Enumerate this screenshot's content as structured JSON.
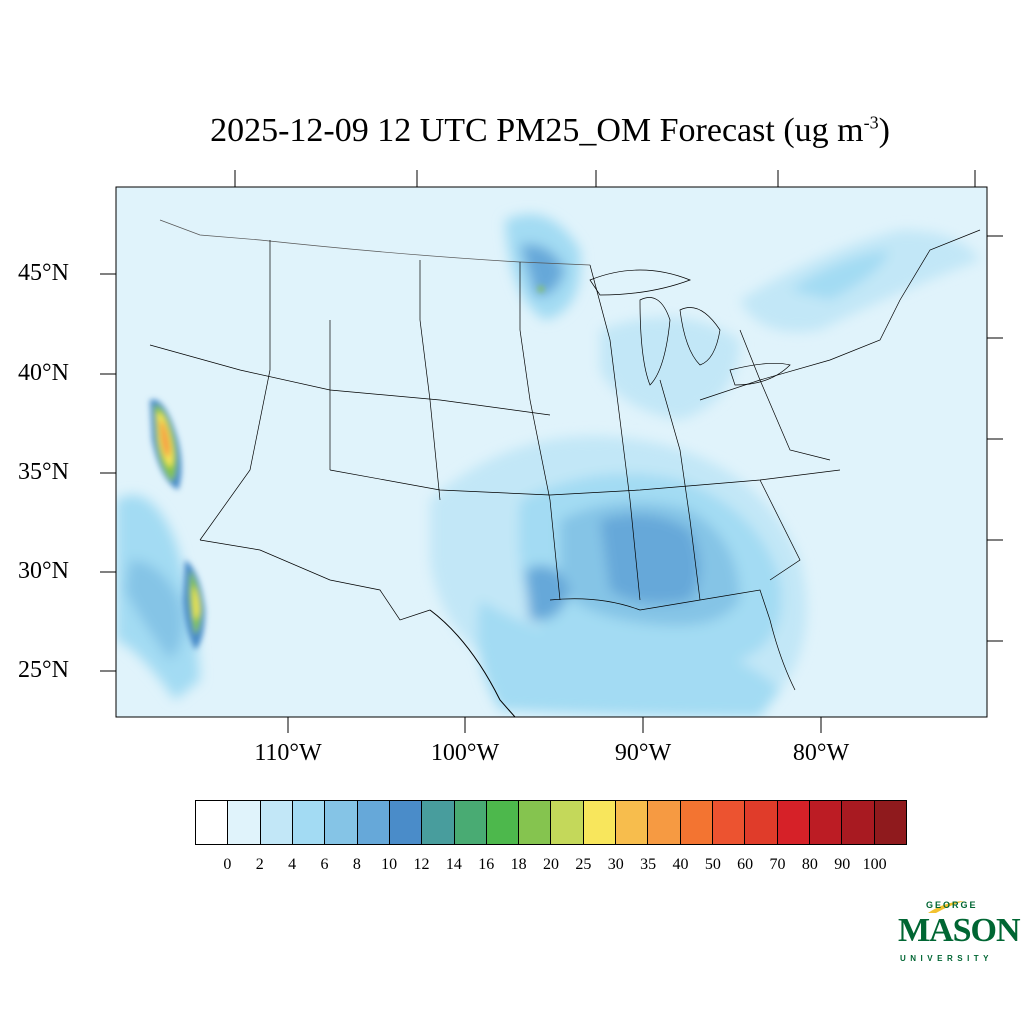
{
  "title": {
    "main": "2025-12-09 12 UTC PM25_OM Forecast (ug m",
    "superscript": "-3",
    "close": ")"
  },
  "lat_labels": [
    "45°N",
    "40°N",
    "35°N",
    "30°N",
    "25°N"
  ],
  "lon_labels": [
    "110°W",
    "100°W",
    "90°W",
    "80°W"
  ],
  "colorbar": {
    "labels": [
      "0",
      "2",
      "4",
      "6",
      "8",
      "10",
      "12",
      "14",
      "16",
      "18",
      "20",
      "25",
      "30",
      "35",
      "40",
      "50",
      "60",
      "70",
      "80",
      "90",
      "100"
    ],
    "colors": [
      "#ffffff",
      "#e0f3fb",
      "#c2e7f7",
      "#a3dbf3",
      "#85c4e6",
      "#66a8d9",
      "#4a8cc9",
      "#489d9d",
      "#49ab73",
      "#4db84c",
      "#85c44f",
      "#c4d85a",
      "#f8e65c",
      "#f7bd4d",
      "#f69a42",
      "#f37431",
      "#ec5330",
      "#e03c2a",
      "#d62128",
      "#bc1c24",
      "#a81a21",
      "#8f1a1d"
    ]
  },
  "logo": {
    "george": "GEORGE",
    "mason": "MASON",
    "university": "UNIVERSITY"
  }
}
